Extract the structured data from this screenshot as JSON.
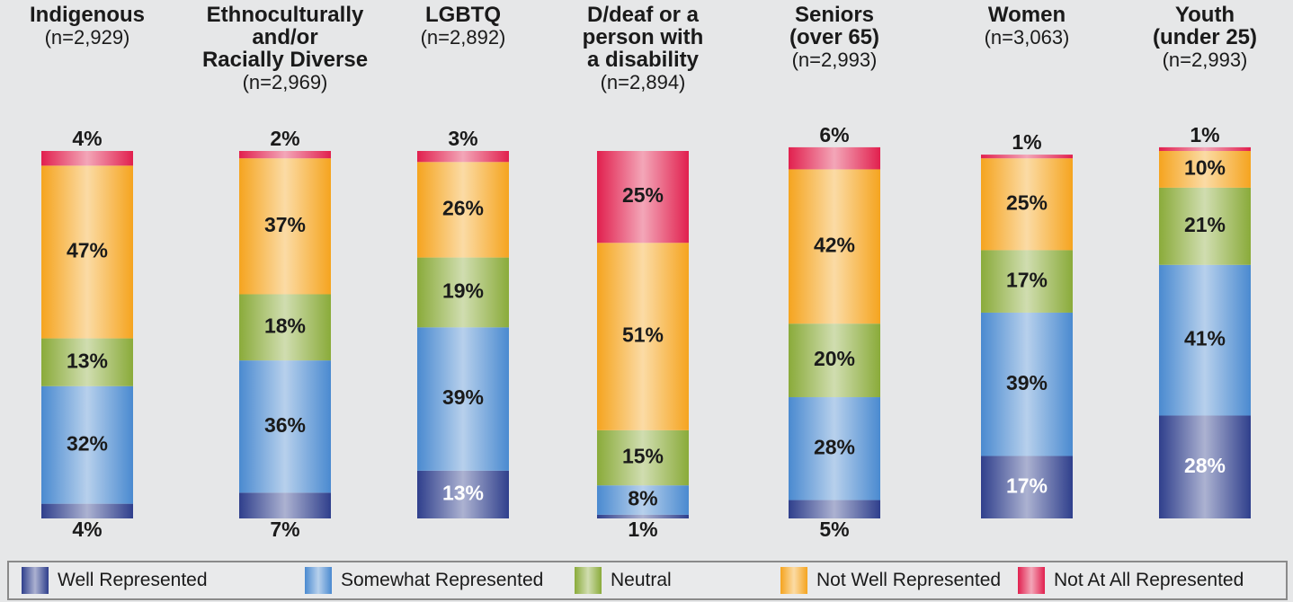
{
  "chart_data": {
    "type": "stacked_bar",
    "categories": [
      "Indigenous",
      "Ethnoculturally\nand/or\nRacially Diverse",
      "LGBTQ",
      "D/deaf or a\nperson with\na disability",
      "Seniors\n(over 65)",
      "Women",
      "Youth\n(under 25)"
    ],
    "sample_sizes": [
      "(n=2,929)",
      "(n=2,969)",
      "(n=2,892)",
      "(n=2,894)",
      "(n=2,993)",
      "(n=3,063)",
      "(n=2,993)"
    ],
    "ylim": [
      0,
      100
    ],
    "legend": "bottom",
    "series": [
      {
        "name": "Well Represented",
        "color": "#2f3f8c",
        "values": [
          4,
          7,
          13,
          1,
          5,
          17,
          28
        ],
        "value_labels": [
          "4%",
          "7%",
          "13%",
          "1%",
          "5%",
          "17%",
          "28%"
        ]
      },
      {
        "name": "Somewhat Represented",
        "color": "#4a8ad0",
        "values": [
          32,
          36,
          39,
          8,
          28,
          39,
          41
        ],
        "value_labels": [
          "32%",
          "36%",
          "39%",
          "8%",
          "28%",
          "39%",
          "41%"
        ]
      },
      {
        "name": "Neutral",
        "color": "#8aab3a",
        "values": [
          13,
          18,
          19,
          15,
          20,
          17,
          21
        ],
        "value_labels": [
          "13%",
          "18%",
          "19%",
          "15%",
          "20%",
          "17%",
          "21%"
        ]
      },
      {
        "name": "Not Well Represented",
        "color": "#f5a41f",
        "values": [
          47,
          37,
          26,
          51,
          42,
          25,
          10
        ],
        "value_labels": [
          "47%",
          "37%",
          "26%",
          "51%",
          "42%",
          "25%",
          "10%"
        ]
      },
      {
        "name": "Not At All Represented",
        "color": "#e1204e",
        "values": [
          4,
          2,
          3,
          25,
          6,
          1,
          1
        ],
        "value_labels": [
          "4%",
          "2%",
          "3%",
          "25%",
          "6%",
          "1%",
          "1%"
        ]
      }
    ]
  }
}
